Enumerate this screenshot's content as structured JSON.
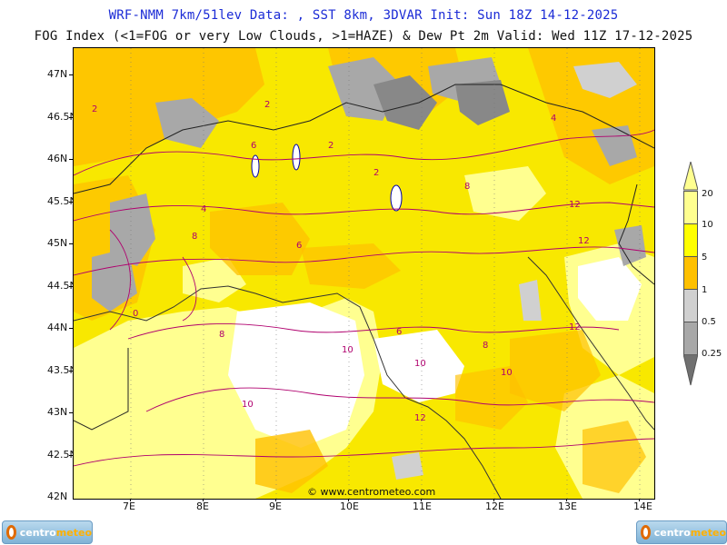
{
  "header": {
    "line1": "WRF-NMM 7km/51lev  Data: , SST 8km, 3DVAR  Init: Sun 18Z 14-12-2025",
    "line2": "FOG Index (<1=FOG or very Low Clouds, >1=HAZE) & Dew Pt 2m  Valid: Wed 11Z 17-12-2025"
  },
  "axes": {
    "lat_labels": [
      "47N",
      "46.5N",
      "46N",
      "45.5N",
      "45N",
      "44.5N",
      "44N",
      "43.5N",
      "43N",
      "42.5N",
      "42N"
    ],
    "lon_labels": [
      "7E",
      "8E",
      "9E",
      "10E",
      "11E",
      "12E",
      "13E",
      "14E"
    ]
  },
  "legend": {
    "labels": [
      "20",
      "10",
      "5",
      "1",
      "0.5",
      "0.25"
    ],
    "colors": [
      "#ffff90",
      "#ffff00",
      "#ffc000",
      "#d0d0d0",
      "#a8a8a8",
      "#707070"
    ]
  },
  "contour_labels": [
    "2",
    "2",
    "2",
    "4",
    "4",
    "6",
    "6",
    "6",
    "8",
    "8",
    "8",
    "8",
    "10",
    "10",
    "10",
    "10",
    "12",
    "12",
    "12",
    "12",
    "2",
    "0"
  ],
  "credit": "© www.centrometeo.com",
  "logos": {
    "left": {
      "a": "centro",
      "b": "meteo"
    },
    "right": {
      "a": "centro",
      "b": "meteo"
    }
  }
}
